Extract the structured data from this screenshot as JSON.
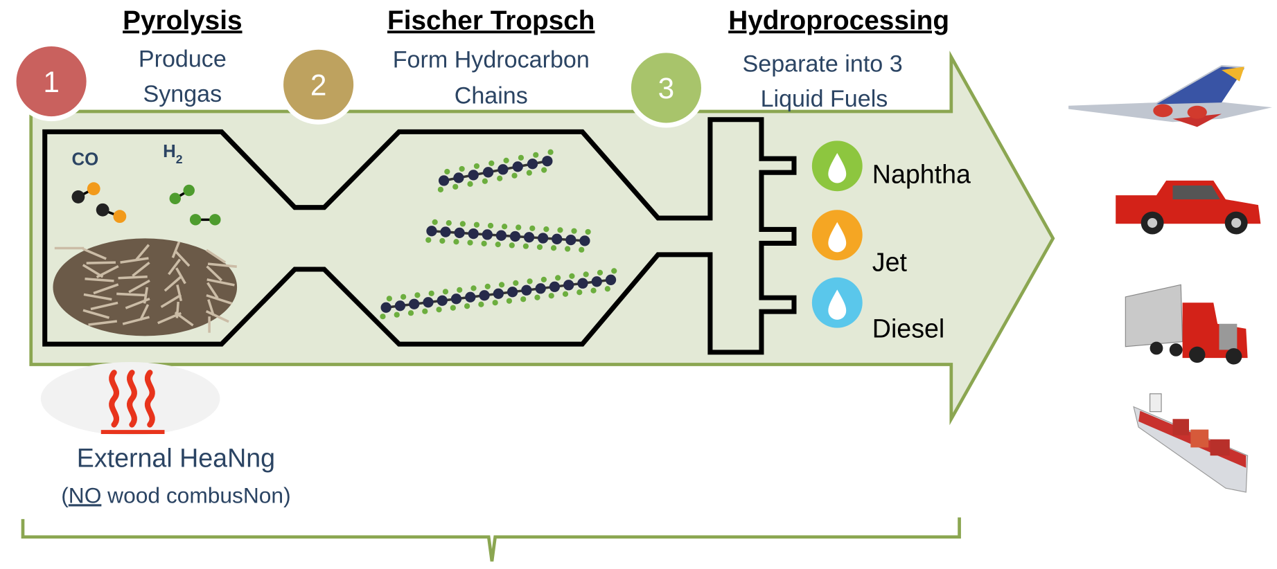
{
  "stages": [
    {
      "number": "1",
      "title": "Pyrolysis",
      "subtitle": [
        "Produce",
        "Syngas"
      ]
    },
    {
      "number": "2",
      "title": "Fischer Tropsch",
      "subtitle": [
        "Form Hydrocarbon",
        "Chains"
      ]
    },
    {
      "number": "3",
      "title": "Hydroprocessing",
      "subtitle": [
        "Separate into 3",
        "Liquid Fuels"
      ]
    }
  ],
  "molecules": {
    "co": "CO",
    "h2": {
      "label": "H",
      "subscript": "2"
    }
  },
  "products": [
    "Naphtha",
    "Jet",
    "Diesel"
  ],
  "heating": {
    "title": "External HeaNng",
    "note": {
      "open": "(",
      "emphasis": "NO",
      "rest": " wood combusNon)"
    }
  }
}
